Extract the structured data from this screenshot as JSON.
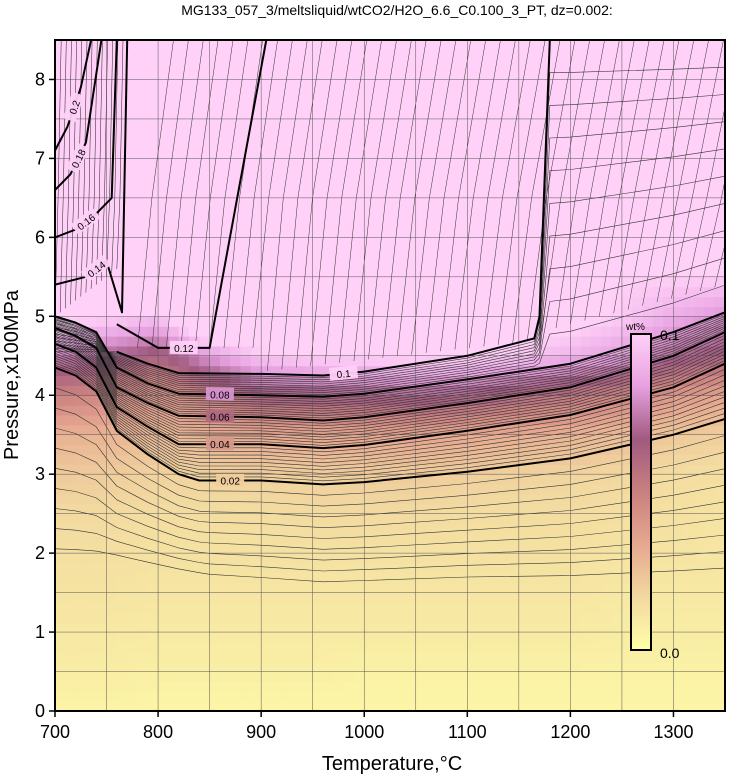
{
  "chart_data": {
    "type": "contour",
    "title": "MG133_057_3/meltsliquid/wtCO2/H2O_6.6_C0.100_3_PT, dz=0.002:",
    "xlabel": "Temperature,°C",
    "ylabel": "Pressure,x100MPa",
    "xlim": [
      700,
      1350
    ],
    "ylim": [
      0,
      8.5
    ],
    "xticks": [
      700,
      800,
      900,
      1000,
      1100,
      1200,
      1300
    ],
    "yticks": [
      0,
      1,
      2,
      3,
      4,
      5,
      6,
      7,
      8
    ],
    "grid": true,
    "colorbar": {
      "label": "wt%",
      "min_label": "0.0",
      "max_label": "0.1",
      "range": [
        0.0,
        0.1
      ],
      "colors": [
        "#ffffa8",
        "#f2d9a0",
        "#e6a890",
        "#c98080",
        "#a05a80",
        "#e6a0e0",
        "#ffd0f8"
      ]
    },
    "contours": [
      {
        "level": 0.02,
        "label": "0.02",
        "major": true,
        "x": [
          700,
          720,
          740,
          760,
          790,
          820,
          840,
          900,
          960,
          1000,
          1100,
          1200,
          1300,
          1350
        ],
        "y": [
          4.35,
          4.25,
          4.05,
          3.55,
          3.25,
          3.0,
          2.92,
          2.92,
          2.87,
          2.9,
          3.03,
          3.2,
          3.5,
          3.7
        ]
      },
      {
        "level": 0.04,
        "label": "0.04",
        "major": true,
        "x": [
          700,
          720,
          740,
          760,
          790,
          820,
          900,
          960,
          1000,
          1100,
          1200,
          1300,
          1350
        ],
        "y": [
          4.65,
          4.55,
          4.35,
          3.85,
          3.6,
          3.38,
          3.38,
          3.33,
          3.37,
          3.55,
          3.75,
          4.1,
          4.4
        ]
      },
      {
        "level": 0.06,
        "label": "0.06",
        "major": true,
        "x": [
          700,
          720,
          740,
          760,
          790,
          820,
          900,
          960,
          1000,
          1100,
          1200,
          1300,
          1350
        ],
        "y": [
          4.85,
          4.75,
          4.6,
          4.1,
          3.9,
          3.74,
          3.72,
          3.68,
          3.72,
          3.9,
          4.1,
          4.5,
          4.8
        ]
      },
      {
        "level": 0.08,
        "label": "0.08",
        "major": true,
        "x": [
          700,
          720,
          740,
          760,
          790,
          820,
          900,
          960,
          1000,
          1100,
          1200,
          1300,
          1350
        ],
        "y": [
          5.0,
          4.92,
          4.8,
          4.35,
          4.15,
          4.02,
          4.0,
          3.98,
          4.02,
          4.2,
          4.4,
          4.8,
          5.05
        ]
      },
      {
        "level": 0.1,
        "label": "0.1",
        "major": true,
        "x": [
          760,
          790,
          820,
          900,
          960,
          1000,
          1100,
          1165,
          1170,
          1180
        ],
        "y": [
          4.55,
          4.4,
          4.28,
          4.27,
          4.25,
          4.3,
          4.5,
          4.72,
          5.0,
          8.5
        ]
      },
      {
        "level": 0.12,
        "label": "0.12",
        "major": true,
        "x": [
          760,
          800,
          850,
          905
        ],
        "y": [
          4.9,
          4.6,
          4.6,
          8.5
        ]
      },
      {
        "level": 0.14,
        "label": "0.14",
        "major": true,
        "x": [
          700,
          730,
          750,
          765,
          770
        ],
        "y": [
          5.4,
          5.5,
          5.7,
          5.05,
          8.5
        ]
      },
      {
        "level": 0.16,
        "label": "0.16",
        "major": true,
        "x": [
          700,
          720,
          740,
          755,
          760
        ],
        "y": [
          6.0,
          6.1,
          6.3,
          6.5,
          8.5
        ]
      },
      {
        "level": 0.18,
        "label": "0.18",
        "major": true,
        "x": [
          700,
          715,
          730,
          745
        ],
        "y": [
          6.6,
          6.8,
          7.2,
          8.5
        ]
      },
      {
        "level": 0.2,
        "label": "0.2",
        "major": true,
        "x": [
          700,
          712,
          725,
          735
        ],
        "y": [
          7.1,
          7.4,
          7.9,
          8.5
        ]
      }
    ],
    "grid_x": [
      700,
      750,
      800,
      850,
      900,
      950,
      1000,
      1050,
      1100,
      1150,
      1200,
      1250,
      1300,
      1350
    ],
    "grid_y": [
      0,
      0.5,
      1,
      1.5,
      2,
      2.5,
      3,
      3.5,
      4,
      4.5,
      5,
      5.5,
      6,
      6.5,
      7,
      7.5,
      8,
      8.5
    ],
    "field": [
      [
        0.005,
        0.005,
        0.004,
        0.004,
        0.004,
        0.004,
        0.004,
        0.004,
        0.004,
        0.004,
        0.004,
        0.004,
        0.004,
        0.004
      ],
      [
        0.008,
        0.008,
        0.007,
        0.007,
        0.007,
        0.007,
        0.006,
        0.006,
        0.006,
        0.006,
        0.006,
        0.006,
        0.006,
        0.006
      ],
      [
        0.01,
        0.01,
        0.009,
        0.009,
        0.009,
        0.009,
        0.009,
        0.009,
        0.009,
        0.009,
        0.009,
        0.008,
        0.008,
        0.008
      ],
      [
        0.012,
        0.012,
        0.011,
        0.011,
        0.011,
        0.011,
        0.011,
        0.011,
        0.011,
        0.011,
        0.011,
        0.01,
        0.01,
        0.01
      ],
      [
        0.014,
        0.014,
        0.013,
        0.013,
        0.013,
        0.013,
        0.013,
        0.013,
        0.013,
        0.013,
        0.013,
        0.012,
        0.012,
        0.011
      ],
      [
        0.016,
        0.016,
        0.015,
        0.015,
        0.015,
        0.016,
        0.016,
        0.016,
        0.015,
        0.015,
        0.015,
        0.014,
        0.013,
        0.012
      ],
      [
        0.022,
        0.021,
        0.019,
        0.019,
        0.02,
        0.02,
        0.021,
        0.021,
        0.02,
        0.019,
        0.018,
        0.017,
        0.015,
        0.014
      ],
      [
        0.03,
        0.029,
        0.027,
        0.03,
        0.034,
        0.034,
        0.035,
        0.035,
        0.033,
        0.031,
        0.029,
        0.026,
        0.022,
        0.02
      ],
      [
        0.05,
        0.046,
        0.04,
        0.052,
        0.064,
        0.066,
        0.067,
        0.069,
        0.066,
        0.06,
        0.055,
        0.049,
        0.04,
        0.035
      ],
      [
        0.075,
        0.07,
        0.062,
        0.082,
        0.096,
        0.1,
        0.101,
        0.102,
        0.1,
        0.096,
        0.09,
        0.083,
        0.07,
        0.063
      ],
      [
        0.105,
        0.1,
        0.095,
        0.128,
        0.124,
        0.12,
        0.118,
        0.116,
        0.114,
        0.11,
        0.106,
        0.098,
        0.088,
        0.08
      ],
      [
        0.14,
        0.138,
        0.14,
        0.137,
        0.128,
        0.122,
        0.117,
        0.115,
        0.112,
        0.108,
        0.104,
        0.1,
        0.1,
        0.1
      ],
      [
        0.165,
        0.16,
        0.155,
        0.141,
        0.132,
        0.124,
        0.118,
        0.114,
        0.111,
        0.107,
        0.103,
        0.1,
        0.1,
        0.1
      ],
      [
        0.19,
        0.18,
        0.165,
        0.145,
        0.135,
        0.127,
        0.12,
        0.114,
        0.11,
        0.106,
        0.102,
        0.1,
        0.1,
        0.1
      ],
      [
        0.215,
        0.195,
        0.175,
        0.148,
        0.137,
        0.129,
        0.121,
        0.114,
        0.109,
        0.105,
        0.101,
        0.1,
        0.1,
        0.1
      ],
      [
        0.24,
        0.21,
        0.185,
        0.15,
        0.139,
        0.13,
        0.121,
        0.114,
        0.109,
        0.104,
        0.1,
        0.1,
        0.1,
        0.1
      ],
      [
        0.265,
        0.225,
        0.192,
        0.152,
        0.14,
        0.131,
        0.122,
        0.114,
        0.108,
        0.103,
        0.1,
        0.1,
        0.1,
        0.1
      ],
      [
        0.29,
        0.24,
        0.198,
        0.154,
        0.141,
        0.132,
        0.122,
        0.114,
        0.108,
        0.103,
        0.1,
        0.1,
        0.1,
        0.1
      ]
    ]
  }
}
